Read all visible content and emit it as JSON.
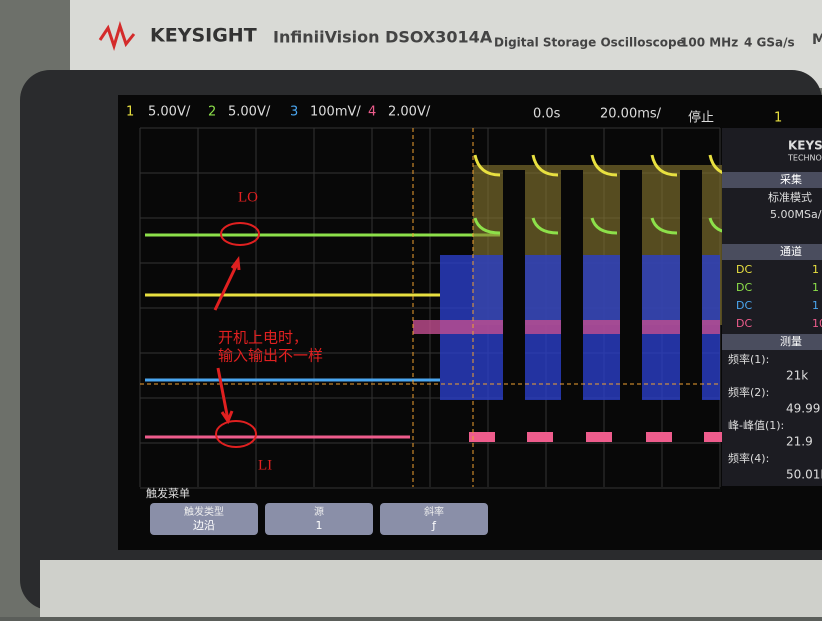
{
  "header": {
    "brand": "KEYSIGHT",
    "model": "InfiniiVision DSOX3014A",
    "description": "Digital Storage Oscilloscope",
    "bandwidth": "100 MHz",
    "sample_rate": "4 GSa/s",
    "cut": "M"
  },
  "status_bar": {
    "ch1_num": "1",
    "ch1_scale": "5.00V/",
    "ch2_num": "2",
    "ch2_scale": "5.00V/",
    "ch3_num": "3",
    "ch3_scale": "100mV/",
    "ch4_num": "4",
    "ch4_scale": "2.00V/",
    "time_offset": "0.0s",
    "time_scale": "20.00ms/",
    "run_state": "停止",
    "trig_src": "1"
  },
  "side_panel": {
    "logo": "KEYS",
    "logo_sub": "TECHNO",
    "acq_title": "采集",
    "acq_mode": "标准模式",
    "acq_rate": "5.00MSa/",
    "chan_title": "通道",
    "channels": [
      [
        "DC",
        "1"
      ],
      [
        "DC",
        "1"
      ],
      [
        "DC",
        "1"
      ],
      [
        "DC",
        "10"
      ]
    ],
    "meas_title": "测量",
    "measurements": [
      [
        "频率(1):",
        "21k"
      ],
      [
        "频率(2):",
        "49.99"
      ],
      [
        "峰-峰值(1):",
        "21.9"
      ],
      [
        "频率(4):",
        "50.01H"
      ]
    ]
  },
  "softkeys": {
    "menu": "触发菜单",
    "keys": [
      [
        "触发类型",
        "边沿"
      ],
      [
        "源",
        "1"
      ],
      [
        "斜率",
        "ƒ"
      ]
    ]
  },
  "annotations": {
    "lo": "LO",
    "note_line1": "开机上电时，",
    "note_line2": "输入输出不一样",
    "li": "LI"
  }
}
